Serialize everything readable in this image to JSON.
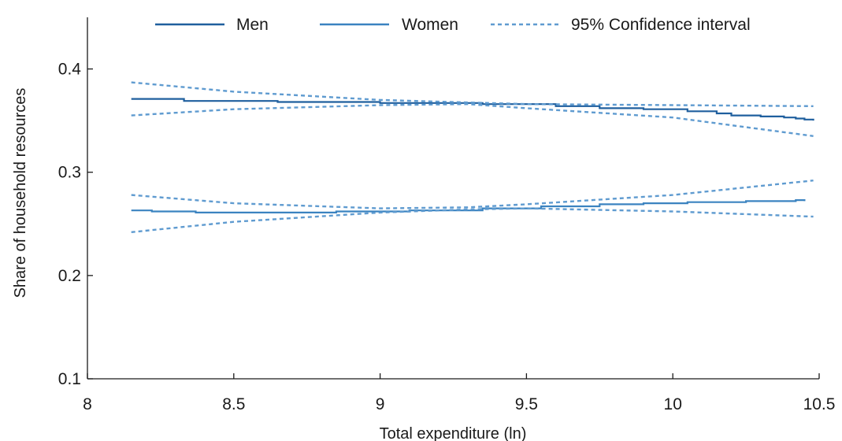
{
  "chart_data": {
    "type": "line",
    "title": "",
    "xlabel": "Total expenditure (ln)",
    "ylabel": "Share of household resources",
    "xlim": [
      8,
      10.5
    ],
    "ylim": [
      0.1,
      0.45
    ],
    "x_ticks": [
      8,
      8.5,
      9,
      9.5,
      10,
      10.5
    ],
    "x_tick_labels": [
      "8",
      "8.5",
      "9",
      "9.5",
      "10",
      "10.5"
    ],
    "y_ticks": [
      0.1,
      0.2,
      0.3,
      0.4
    ],
    "y_tick_labels": [
      "0.1",
      "0.2",
      "0.3",
      "0.4"
    ],
    "grid": false,
    "legend_position": "top",
    "legend": [
      "Men",
      "Women",
      "95% Confidence interval"
    ],
    "colors": {
      "men": "#1f5f9e",
      "women": "#3b83c0",
      "ci": "#5f9bd0"
    },
    "series": [
      {
        "name": "Men",
        "style": "solid",
        "step": true,
        "x": [
          8.15,
          8.33,
          8.65,
          9.0,
          9.35,
          9.6,
          9.75,
          9.9,
          10.05,
          10.15,
          10.2,
          10.3,
          10.38,
          10.42,
          10.45,
          10.48
        ],
        "y": [
          0.371,
          0.369,
          0.368,
          0.367,
          0.366,
          0.364,
          0.362,
          0.361,
          0.359,
          0.357,
          0.355,
          0.354,
          0.353,
          0.352,
          0.351,
          0.35
        ]
      },
      {
        "name": "Women",
        "style": "solid",
        "step": true,
        "x": [
          8.15,
          8.22,
          8.37,
          8.85,
          9.1,
          9.35,
          9.55,
          9.75,
          9.9,
          10.05,
          10.25,
          10.42,
          10.45
        ],
        "y": [
          0.263,
          0.262,
          0.261,
          0.262,
          0.263,
          0.265,
          0.267,
          0.269,
          0.27,
          0.271,
          0.272,
          0.273,
          0.272
        ]
      },
      {
        "style": "dashed",
        "ci_for": "Men",
        "bound": "upper",
        "x": [
          8.15,
          8.5,
          9.0,
          9.5,
          10.0,
          10.48
        ],
        "y": [
          0.387,
          0.378,
          0.37,
          0.366,
          0.365,
          0.364
        ]
      },
      {
        "style": "dashed",
        "ci_for": "Men",
        "bound": "lower",
        "x": [
          8.15,
          8.5,
          9.0,
          9.3,
          9.5,
          10.0,
          10.48
        ],
        "y": [
          0.355,
          0.361,
          0.365,
          0.366,
          0.362,
          0.353,
          0.335
        ]
      },
      {
        "style": "dashed",
        "ci_for": "Women",
        "bound": "upper",
        "x": [
          8.15,
          8.5,
          9.0,
          9.3,
          9.5,
          10.0,
          10.48
        ],
        "y": [
          0.278,
          0.27,
          0.265,
          0.266,
          0.269,
          0.278,
          0.292
        ]
      },
      {
        "style": "dashed",
        "ci_for": "Women",
        "bound": "lower",
        "x": [
          8.15,
          8.5,
          9.0,
          9.3,
          9.5,
          10.0,
          10.48
        ],
        "y": [
          0.242,
          0.252,
          0.261,
          0.264,
          0.265,
          0.262,
          0.257
        ]
      }
    ]
  }
}
